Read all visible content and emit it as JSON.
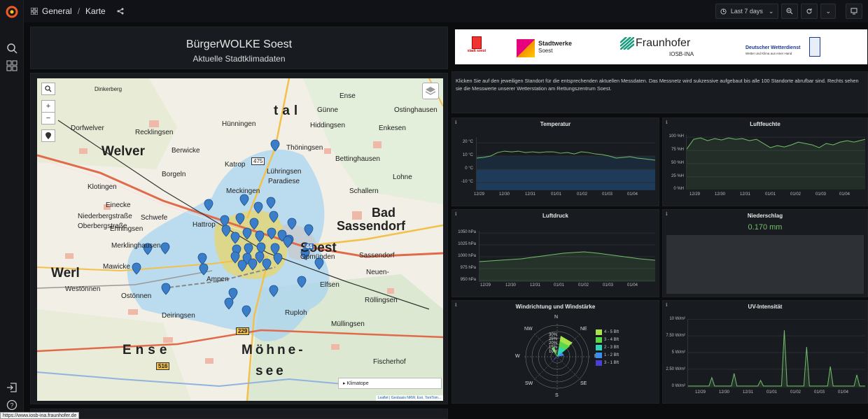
{
  "breadcrumb": {
    "folder": "General",
    "separator": "/",
    "dashboard": "Karte"
  },
  "toolbar": {
    "time_range": "Last 7 days"
  },
  "title_panel": {
    "title": "BürgerWOLKE Soest",
    "subtitle": "Aktuelle Stadtklimadaten"
  },
  "logos": {
    "soest": "stadt soest",
    "stadtwerke_1": "Stadtwerke",
    "stadtwerke_2": "Soest",
    "fraunhofer_1": "Fraunhofer",
    "fraunhofer_2": "IOSB-INA",
    "dwd_1": "Deutscher Wetterdienst",
    "dwd_2": "Wetter und Klima aus einer Hand"
  },
  "intro_text": "Klicken Sie auf den jeweiligen Standort für die entsprechenden aktuellen Messdaten. Das Messnetz wird sukzessive aufgebaut bis alle 100 Standorte abrufbar sind. Rechts sehen sie die Messwerte unserer Wetterstation am Rettungszentrum Soest.",
  "map": {
    "places": [
      "Welver",
      "Soest",
      "Bad",
      "Sassendorf",
      "Werl",
      "Ense",
      "Möhne-",
      "see",
      "tal",
      "Dinkerberg",
      "Dorfwelver",
      "Recklingsen",
      "Berwicke",
      "Klotingen",
      "Borgeln",
      "Einecke",
      "Niederbergstraße",
      "Oberbergstraße",
      "Ehningsen",
      "Schwefe",
      "Merklinghausen",
      "Mawicke",
      "Westönnen",
      "Ostönnen",
      "Meckingen",
      "Katrop",
      "Lühringsen",
      "Hattrop",
      "Ampen",
      "Deiringsen",
      "Elfsen",
      "Neuen-",
      "Ruploh",
      "Ense",
      "Günne",
      "Bettinghausen",
      "Schallern",
      "Hiddingsen",
      "Enkesen",
      "Paradiese",
      "Thöningsen",
      "Hünningen",
      "Müllingsen",
      "Ostinghausen",
      "Lohne",
      "Röllingsen",
      "Opmünden",
      "Sassendorf",
      "Fischerhof"
    ],
    "roads": [
      "475",
      "229",
      "516",
      "44"
    ],
    "layer_label": "Klimatope",
    "attribution": "Leaflet | Geobasis NRW, Esri, TomTom...",
    "zoom_in": "+",
    "zoom_out": "−"
  },
  "panels": {
    "temperatur": {
      "title": "Temperatur",
      "yticks": [
        "20 °C",
        "10 °C",
        "0 °C",
        "-10 °C"
      ],
      "xticks": [
        "12/29",
        "12/30",
        "12/31",
        "01/01",
        "01/02",
        "01/03",
        "01/04"
      ]
    },
    "luftfeuchte": {
      "title": "Luftfeuchte",
      "yticks": [
        "100 %H",
        "75 %H",
        "50 %H",
        "25 %H",
        "0 %H"
      ],
      "xticks": [
        "12/29",
        "12/30",
        "12/31",
        "01/01",
        "01/02",
        "01/03",
        "01/04"
      ]
    },
    "luftdruck": {
      "title": "Luftdruck",
      "yticks": [
        "1050 hPa",
        "1025 hPa",
        "1000 hPa",
        "975 hPa",
        "950 hPa"
      ],
      "xticks": [
        "12/29",
        "12/30",
        "12/31",
        "01/01",
        "01/02",
        "01/03",
        "01/04"
      ]
    },
    "niederschlag": {
      "title": "Niederschlag",
      "value": "0.170 mm"
    },
    "wind": {
      "title": "Windrichtung und Windstärke",
      "directions": [
        "N",
        "NE",
        "NW",
        "W",
        "E",
        "SW",
        "SE",
        "S"
      ],
      "legend": [
        "4 - 5 Bft",
        "3 - 4 Bft",
        "2 - 3 Bft",
        "1 - 2 Bft",
        "3 - 1 Bft"
      ],
      "rings": [
        "30%",
        "25%",
        "20%",
        "15%",
        "10%"
      ]
    },
    "uv": {
      "title": "UV-Intensität",
      "yticks": [
        "10 W/m²",
        "7.50 W/m²",
        "5 W/m²",
        "2.50 W/m²",
        "0 W/m²"
      ],
      "xticks": [
        "12/29",
        "12/30",
        "12/31",
        "01/01",
        "01/02",
        "01/03",
        "01/04"
      ]
    }
  },
  "status_url": "https://www.iosb-ina.fraunhofer.de",
  "colors": {
    "accent": "#73bf69",
    "temp_fill": "#1f3b5a",
    "wind_colors": [
      "#a9e34b",
      "#59d64a",
      "#2fd6b8",
      "#3a8ef0",
      "#4a3fd6"
    ]
  }
}
